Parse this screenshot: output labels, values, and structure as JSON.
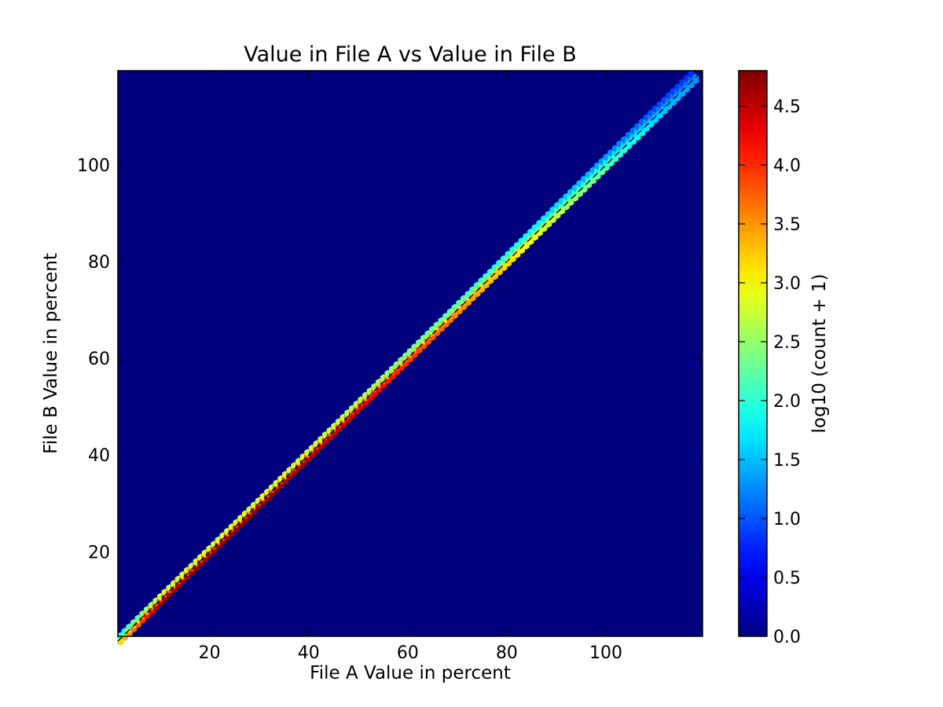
{
  "chart_data": {
    "type": "heatmap",
    "subtype": "hexbin",
    "title": "Value in File A vs Value in File B",
    "xlabel": "File A Value in percent",
    "ylabel": "File B Value in percent",
    "xlim": [
      1.5,
      119.5
    ],
    "ylim": [
      2.5,
      119.5
    ],
    "xticks": [
      20,
      40,
      60,
      80,
      100
    ],
    "yticks": [
      20,
      40,
      60,
      80,
      100
    ],
    "background_color": "#00007f",
    "colormap": "jet",
    "colorbar": {
      "label": "log10 (count + 1)",
      "range": [
        0.0,
        4.8
      ],
      "ticks": [
        "0.0",
        "0.5",
        "1.0",
        "1.5",
        "2.0",
        "2.5",
        "3.0",
        "3.5",
        "4.0",
        "4.5"
      ]
    },
    "reference_line": {
      "style": "dashed",
      "color": "#000000",
      "from": [
        1.5,
        1.5
      ],
      "to": [
        119.5,
        119.5
      ]
    },
    "diagonal_profile": {
      "x": [
        2,
        10,
        20,
        30,
        40,
        50,
        60,
        70,
        80,
        90,
        100,
        110,
        118
      ],
      "core_log_count": [
        3.2,
        4.6,
        4.7,
        4.7,
        4.6,
        4.4,
        4.0,
        3.6,
        3.2,
        2.7,
        2.2,
        1.6,
        1.3
      ],
      "offset_above": [
        0.6,
        0.6,
        0.6,
        0.6,
        0.7,
        0.8,
        0.9,
        1.0,
        1.2,
        1.4,
        1.5,
        1.6,
        1.6
      ]
    }
  }
}
